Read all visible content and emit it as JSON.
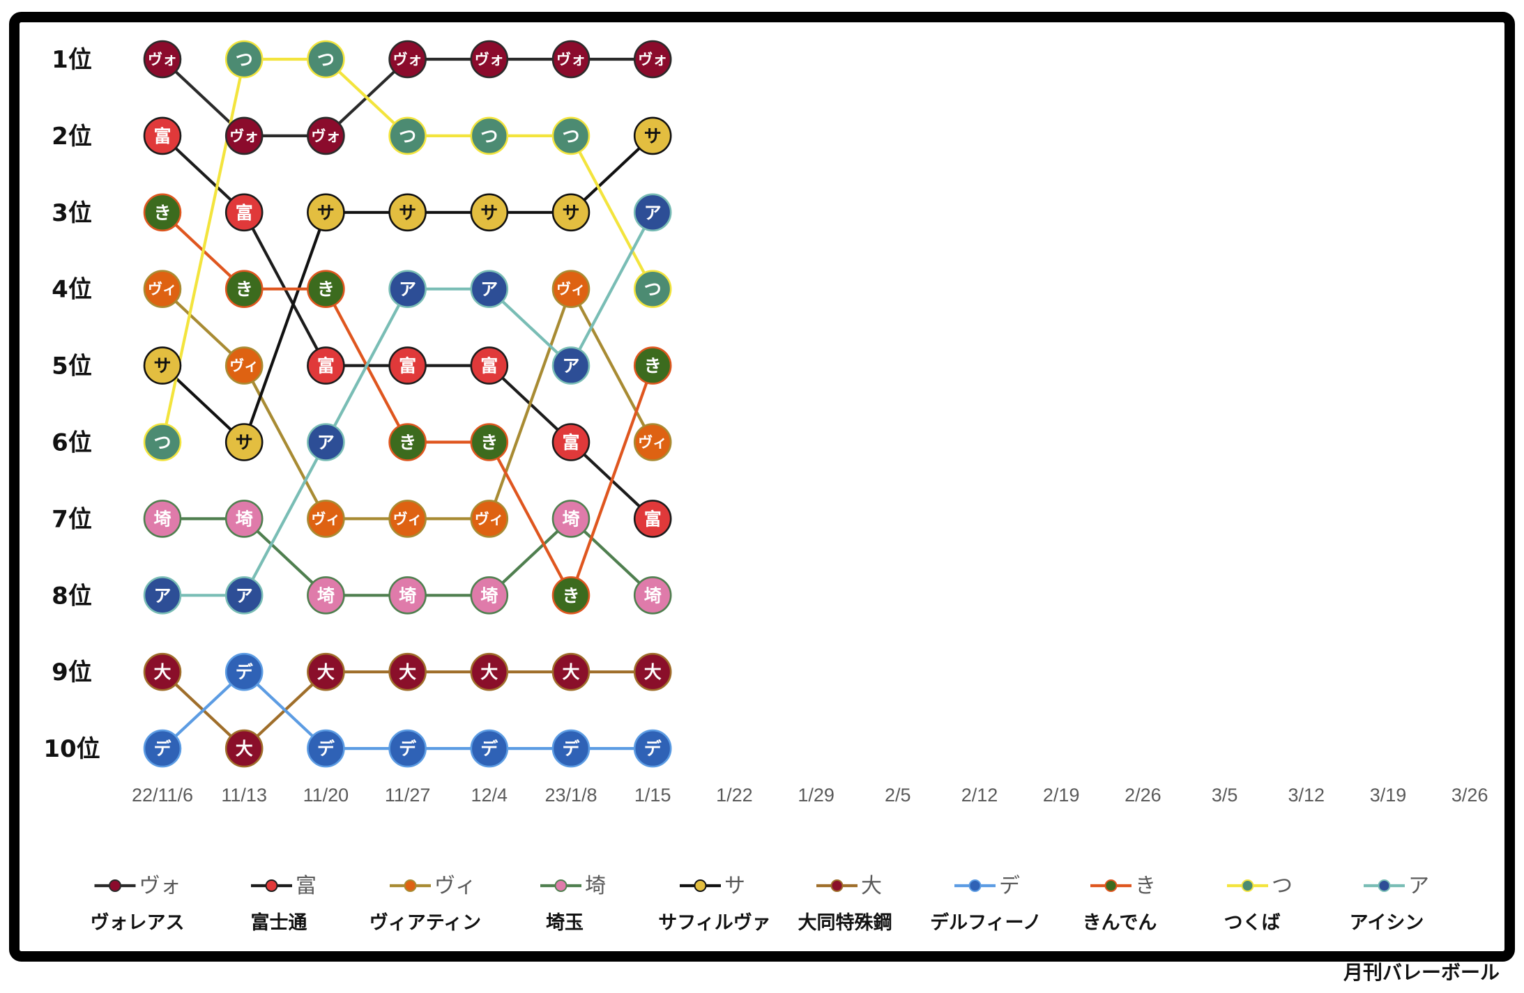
{
  "chart_data": {
    "type": "line",
    "categories": [
      "22/11/6",
      "11/13",
      "11/20",
      "11/27",
      "12/4",
      "23/1/8",
      "1/15",
      "1/22",
      "1/29",
      "2/5",
      "2/12",
      "2/19",
      "2/26",
      "3/5",
      "3/12",
      "3/19",
      "3/26"
    ],
    "y_tick_labels": [
      "1位",
      "2位",
      "3位",
      "4位",
      "5位",
      "6位",
      "7位",
      "8位",
      "9位",
      "10位"
    ],
    "ylim": [
      1,
      10
    ],
    "y_reversed": true,
    "grid": false,
    "legend_position": "bottom",
    "series": [
      {
        "name": "ヴォレアス",
        "short": "ヴォ",
        "line_color": "#2a2a2a",
        "marker_color": "#8b0b2c",
        "label_color": "#ffffff",
        "values": [
          1,
          2,
          2,
          1,
          1,
          1,
          1,
          null,
          null,
          null,
          null,
          null,
          null,
          null,
          null,
          null,
          null
        ]
      },
      {
        "name": "富士通",
        "short": "富",
        "line_color": "#1c1c1c",
        "marker_color": "#e0393a",
        "label_color": "#ffffff",
        "values": [
          2,
          3,
          5,
          5,
          5,
          6,
          7,
          null,
          null,
          null,
          null,
          null,
          null,
          null,
          null,
          null,
          null
        ]
      },
      {
        "name": "ヴィアティン",
        "short": "ヴィ",
        "line_color": "#a88b33",
        "marker_color": "#de6212",
        "label_color": "#ffffff",
        "values": [
          4,
          5,
          7,
          7,
          7,
          4,
          6,
          null,
          null,
          null,
          null,
          null,
          null,
          null,
          null,
          null,
          null
        ]
      },
      {
        "name": "埼玉",
        "short": "埼",
        "line_color": "#4f7f4f",
        "marker_color": "#df7baa",
        "label_color": "#ffffff",
        "values": [
          7,
          7,
          8,
          8,
          8,
          7,
          8,
          null,
          null,
          null,
          null,
          null,
          null,
          null,
          null,
          null,
          null
        ]
      },
      {
        "name": "サフィルヴァ",
        "short": "サ",
        "line_color": "#111111",
        "marker_color": "#e3be40",
        "label_color": "#111111",
        "values": [
          5,
          6,
          3,
          3,
          3,
          3,
          2,
          null,
          null,
          null,
          null,
          null,
          null,
          null,
          null,
          null,
          null
        ]
      },
      {
        "name": "大同特殊鋼",
        "short": "大",
        "line_color": "#9f6e2a",
        "marker_color": "#8a0f2a",
        "label_color": "#ffffff",
        "values": [
          9,
          10,
          9,
          9,
          9,
          9,
          9,
          null,
          null,
          null,
          null,
          null,
          null,
          null,
          null,
          null,
          null
        ]
      },
      {
        "name": "デルフィーノ",
        "short": "デ",
        "line_color": "#5c9ce3",
        "marker_color": "#2f62b6",
        "label_color": "#ffffff",
        "values": [
          10,
          9,
          10,
          10,
          10,
          10,
          10,
          null,
          null,
          null,
          null,
          null,
          null,
          null,
          null,
          null,
          null
        ]
      },
      {
        "name": "きんでん",
        "short": "き",
        "line_color": "#df561f",
        "marker_color": "#3c6b1e",
        "label_color": "#ffffff",
        "values": [
          3,
          4,
          4,
          6,
          6,
          8,
          5,
          null,
          null,
          null,
          null,
          null,
          null,
          null,
          null,
          null,
          null
        ]
      },
      {
        "name": "つくば",
        "short": "つ",
        "line_color": "#f3e43d",
        "marker_color": "#4c8b72",
        "label_color": "#ffffff",
        "values": [
          6,
          1,
          1,
          2,
          2,
          2,
          4,
          null,
          null,
          null,
          null,
          null,
          null,
          null,
          null,
          null,
          null
        ]
      },
      {
        "name": "アイシン",
        "short": "ア",
        "line_color": "#79bdb5",
        "marker_color": "#2d4e96",
        "label_color": "#ffffff",
        "values": [
          8,
          8,
          6,
          4,
          4,
          5,
          3,
          null,
          null,
          null,
          null,
          null,
          null,
          null,
          null,
          null,
          null
        ]
      }
    ]
  },
  "credit": "月刊バレーボール"
}
